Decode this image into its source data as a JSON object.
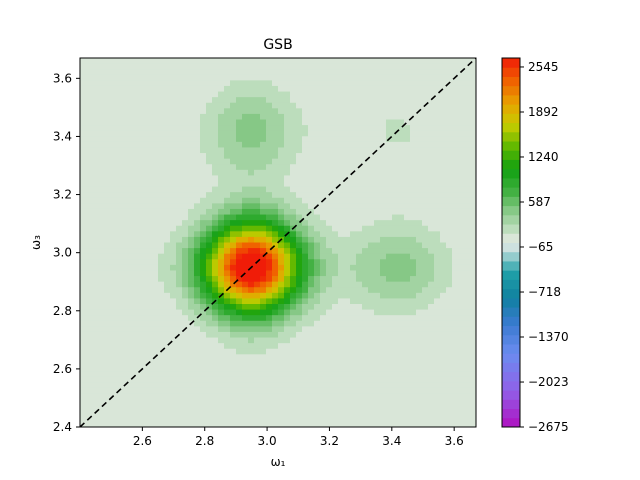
{
  "chart_data": {
    "type": "heatmap",
    "title": "GSB",
    "xlabel": "ω₁",
    "ylabel": "ω₃",
    "xlim": [
      2.4,
      3.67
    ],
    "ylim": [
      2.4,
      3.67
    ],
    "x_ticks": [
      "2.6",
      "2.8",
      "3.0",
      "3.2",
      "3.4",
      "3.6"
    ],
    "y_ticks": [
      "2.4",
      "2.6",
      "2.8",
      "3.0",
      "3.2",
      "3.4",
      "3.6"
    ],
    "diagonal": "dashed black line y = x",
    "peaks": [
      {
        "x": 2.95,
        "y": 2.95,
        "value": 2650
      },
      {
        "x": 3.42,
        "y": 2.95,
        "value": 380
      },
      {
        "x": 2.95,
        "y": 3.42,
        "value": 380
      },
      {
        "x": 3.42,
        "y": 3.42,
        "value": 120
      }
    ],
    "colorbar": {
      "range": [
        -2675,
        2675
      ],
      "tick_labels": [
        "2545",
        "1892",
        "1240",
        "587",
        "−65",
        "−718",
        "−1370",
        "−2023",
        "−2675"
      ],
      "tick_values": [
        2545,
        1892,
        1240,
        587,
        -65,
        -718,
        -1370,
        -2023,
        -2675
      ]
    }
  }
}
